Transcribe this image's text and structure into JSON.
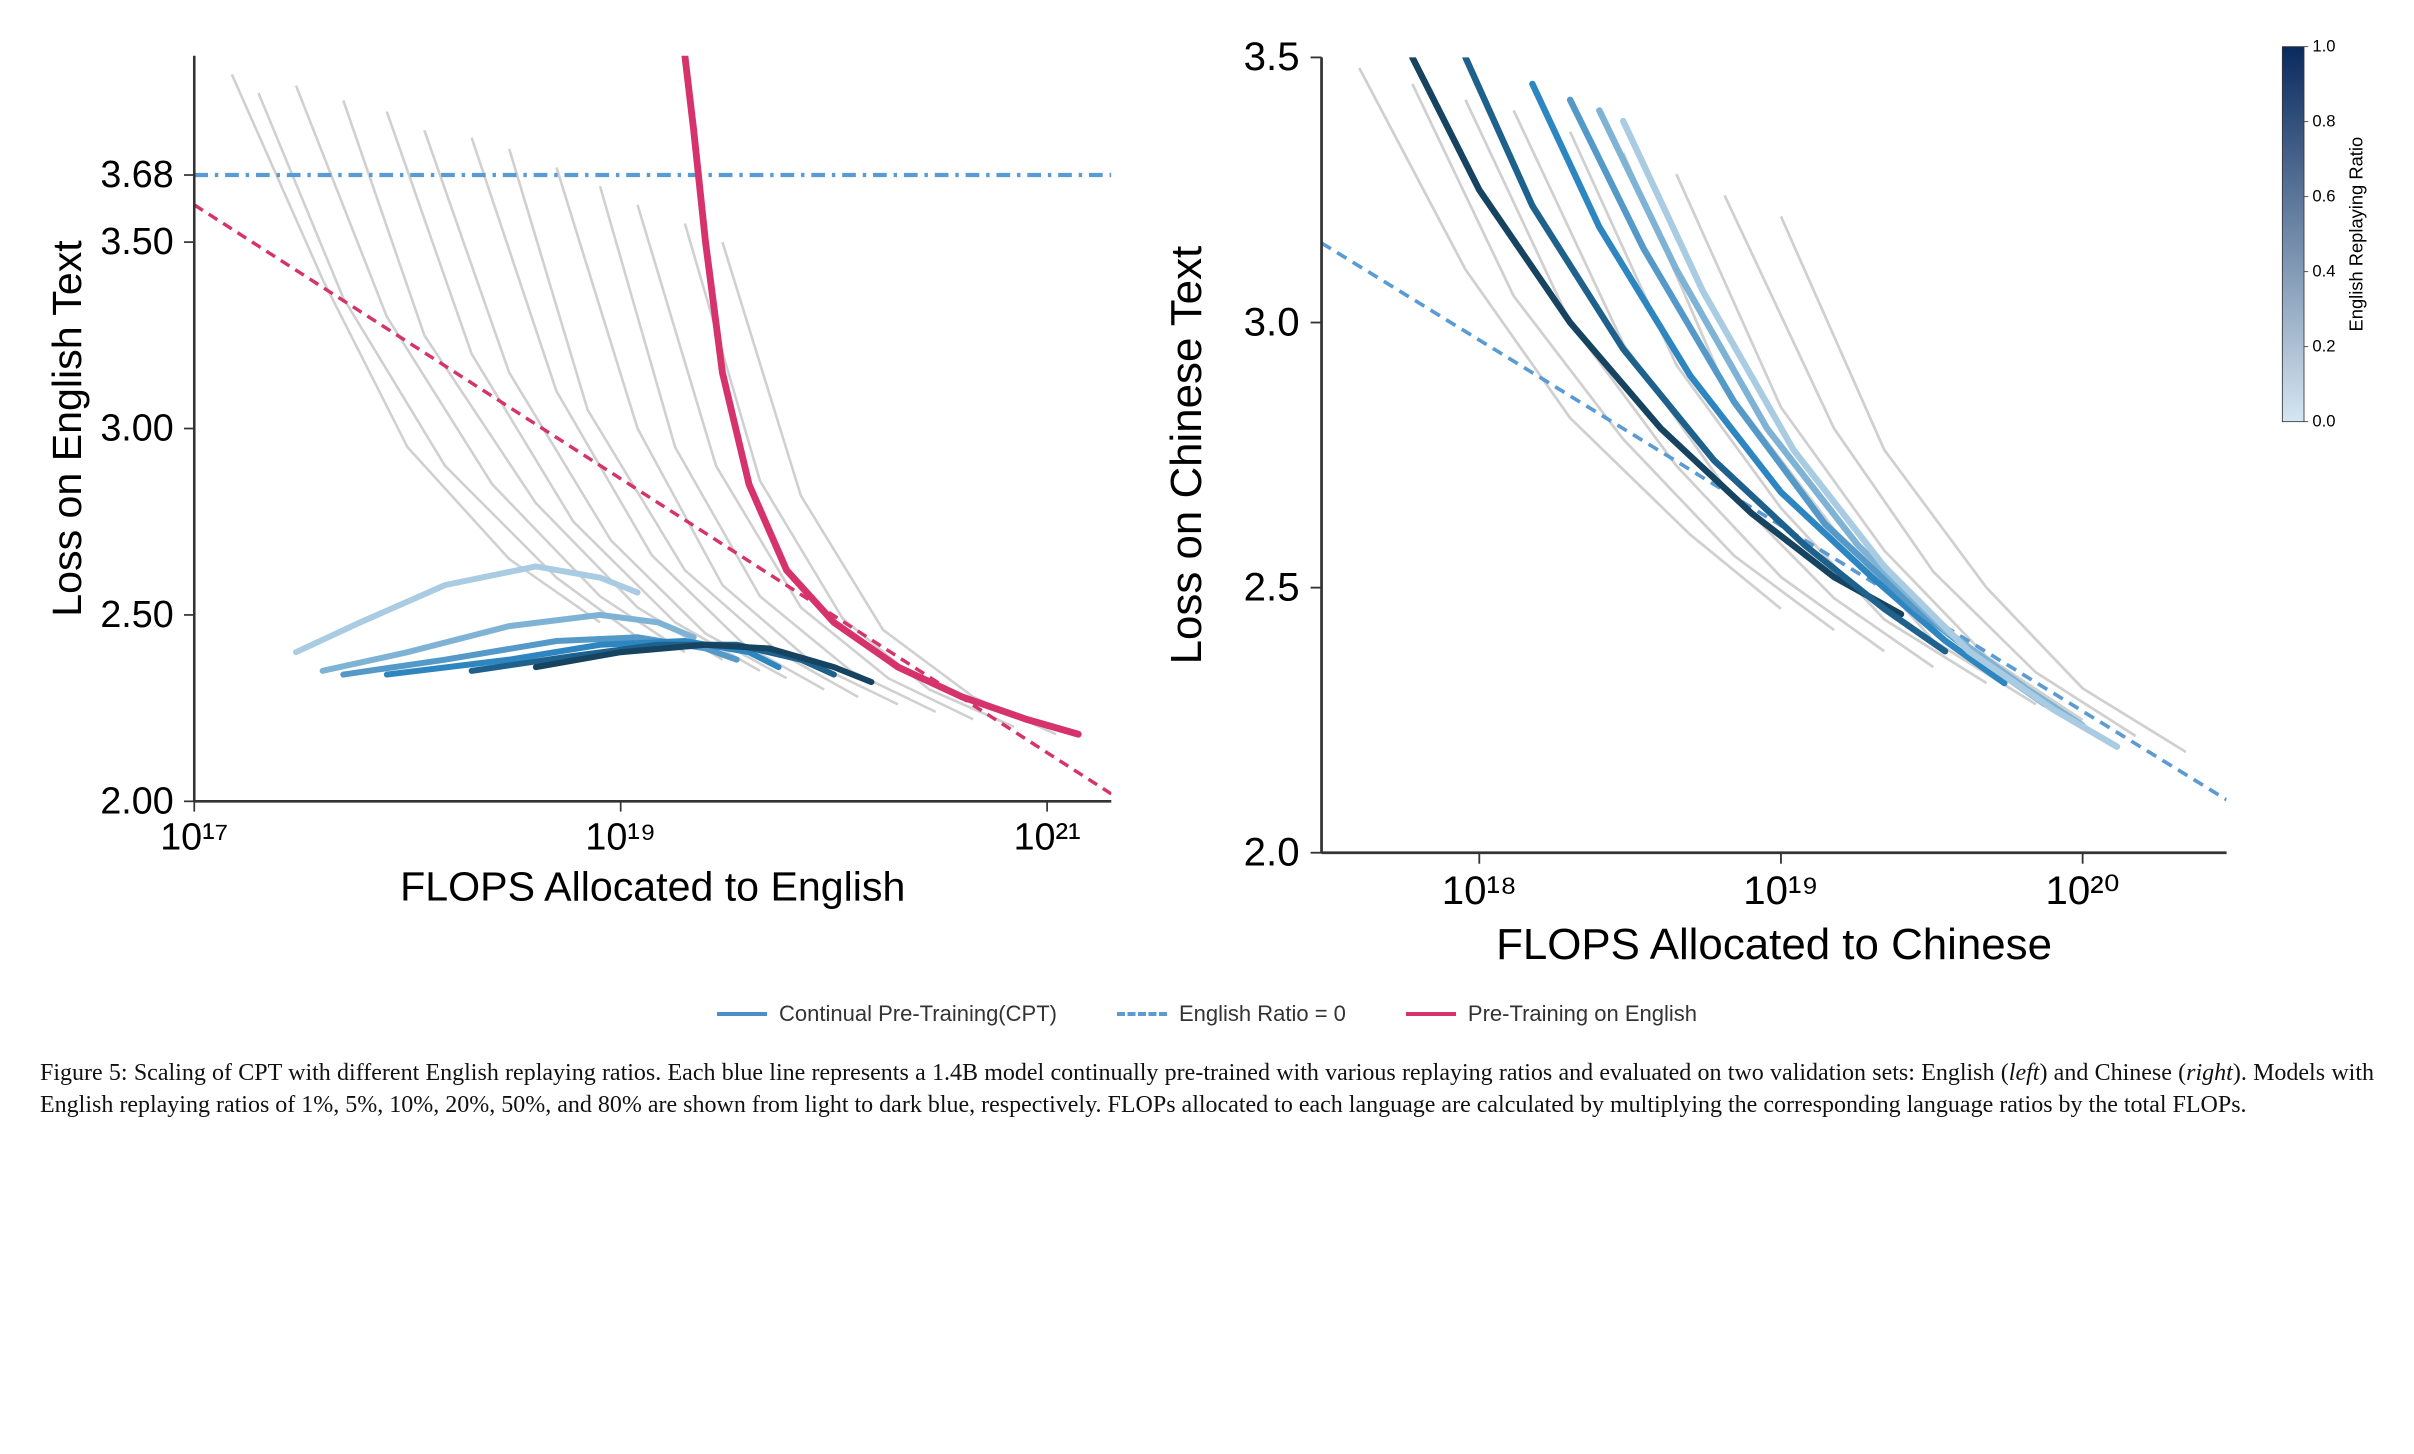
{
  "legend": {
    "cpt": {
      "label": "Continual Pre-Training(CPT)",
      "color": "#4a8fc9",
      "style": "solid"
    },
    "ratio0": {
      "label": "English Ratio = 0",
      "color": "#5a9bd4",
      "style": "dashdot"
    },
    "pretrain": {
      "label": "Pre-Training on English",
      "color": "#d6336c",
      "style": "solid"
    }
  },
  "colorbar": {
    "label": "English Replaying Ratio",
    "min": 0.0,
    "max": 1.0,
    "ticks": [
      0.0,
      0.2,
      0.4,
      0.6,
      0.8,
      1.0
    ],
    "gradient_top": "#0a2a5e",
    "gradient_bottom": "#d4e6f1"
  },
  "ratio_colors": {
    "0.01": "#a9cce3",
    "0.05": "#7fb3d5",
    "0.10": "#5499c7",
    "0.20": "#2e86c1",
    "0.50": "#1f618d",
    "0.80": "#154360"
  },
  "chart_left": {
    "type": "line",
    "xlabel": "FLOPS Allocated to English",
    "ylabel": "Loss on English Text",
    "xscale": "log",
    "xlim": [
      1e+17,
      2e+21
    ],
    "ylim": [
      2.0,
      4.0
    ],
    "xticks": [
      1e+17,
      1e+19,
      1e+21
    ],
    "xtick_labels": [
      "10¹⁷",
      "10¹⁹",
      "10²¹"
    ],
    "yticks": [
      2.0,
      2.5,
      3.0,
      3.5,
      3.68
    ],
    "ytick_labels": [
      "2.00",
      "2.50",
      "3.00",
      "3.50",
      "3.68"
    ],
    "axis_fontsize": 22,
    "label_fontsize": 24,
    "background_color": "#ffffff",
    "horizontal_line": {
      "y": 3.68,
      "color": "#5a9bd4",
      "dash": "8,4,2,4"
    },
    "diag_line": {
      "x1": 1e+17,
      "y1": 3.6,
      "x2": 2e+21,
      "y2": 2.02,
      "color": "#d6336c",
      "dash": "6,4"
    },
    "pink_curve": {
      "color": "#d6336c",
      "width": 4,
      "points": [
        [
          2e+19,
          4.0
        ],
        [
          2.2e+19,
          3.8
        ],
        [
          2.5e+19,
          3.5
        ],
        [
          3e+19,
          3.15
        ],
        [
          4e+19,
          2.85
        ],
        [
          6e+19,
          2.62
        ],
        [
          1e+20,
          2.48
        ],
        [
          2e+20,
          2.36
        ],
        [
          4e+20,
          2.28
        ],
        [
          8e+20,
          2.22
        ],
        [
          1.4e+21,
          2.18
        ]
      ]
    },
    "cpt_curves": [
      {
        "ratio": 0.01,
        "color": "#a9cce3",
        "points": [
          [
            3e+17,
            2.4
          ],
          [
            6e+17,
            2.48
          ],
          [
            1.5e+18,
            2.58
          ],
          [
            4e+18,
            2.63
          ],
          [
            8e+18,
            2.6
          ],
          [
            1.2e+19,
            2.56
          ]
        ]
      },
      {
        "ratio": 0.05,
        "color": "#7fb3d5",
        "points": [
          [
            4e+17,
            2.35
          ],
          [
            1e+18,
            2.4
          ],
          [
            3e+18,
            2.47
          ],
          [
            8e+18,
            2.5
          ],
          [
            1.5e+19,
            2.48
          ],
          [
            2.2e+19,
            2.44
          ]
        ]
      },
      {
        "ratio": 0.1,
        "color": "#5499c7",
        "points": [
          [
            5e+17,
            2.34
          ],
          [
            1.5e+18,
            2.38
          ],
          [
            5e+18,
            2.43
          ],
          [
            1.2e+19,
            2.44
          ],
          [
            2.5e+19,
            2.41
          ],
          [
            3.5e+19,
            2.38
          ]
        ]
      },
      {
        "ratio": 0.2,
        "color": "#2e86c1",
        "points": [
          [
            8e+17,
            2.34
          ],
          [
            3e+18,
            2.38
          ],
          [
            8e+18,
            2.42
          ],
          [
            2e+19,
            2.43
          ],
          [
            4e+19,
            2.4
          ],
          [
            5.5e+19,
            2.36
          ]
        ]
      },
      {
        "ratio": 0.5,
        "color": "#1f618d",
        "points": [
          [
            2e+18,
            2.35
          ],
          [
            6e+18,
            2.39
          ],
          [
            1.5e+19,
            2.42
          ],
          [
            3.5e+19,
            2.42
          ],
          [
            7e+19,
            2.38
          ],
          [
            1e+20,
            2.34
          ]
        ]
      },
      {
        "ratio": 0.8,
        "color": "#154360",
        "points": [
          [
            4e+18,
            2.36
          ],
          [
            1e+19,
            2.4
          ],
          [
            2.5e+19,
            2.42
          ],
          [
            5e+19,
            2.41
          ],
          [
            1e+20,
            2.36
          ],
          [
            1.5e+20,
            2.32
          ]
        ]
      }
    ],
    "grey_bg_curves": [
      [
        [
          1.5e+17,
          3.95
        ],
        [
          4e+17,
          3.4
        ],
        [
          1e+18,
          2.95
        ],
        [
          3e+18,
          2.65
        ],
        [
          8e+18,
          2.48
        ]
      ],
      [
        [
          2e+17,
          3.9
        ],
        [
          5e+17,
          3.35
        ],
        [
          1.5e+18,
          2.9
        ],
        [
          5e+18,
          2.6
        ],
        [
          1.2e+19,
          2.44
        ]
      ],
      [
        [
          3e+17,
          3.92
        ],
        [
          8e+17,
          3.3
        ],
        [
          2.5e+18,
          2.85
        ],
        [
          8e+18,
          2.55
        ],
        [
          2e+19,
          2.4
        ]
      ],
      [
        [
          5e+17,
          3.88
        ],
        [
          1.2e+18,
          3.25
        ],
        [
          4e+18,
          2.8
        ],
        [
          1.2e+19,
          2.52
        ],
        [
          3e+19,
          2.38
        ]
      ],
      [
        [
          8e+17,
          3.85
        ],
        [
          2e+18,
          3.2
        ],
        [
          6e+18,
          2.75
        ],
        [
          1.8e+19,
          2.48
        ],
        [
          4.5e+19,
          2.35
        ]
      ],
      [
        [
          1.2e+18,
          3.8
        ],
        [
          3e+18,
          3.15
        ],
        [
          9e+18,
          2.7
        ],
        [
          2.5e+19,
          2.45
        ],
        [
          6e+19,
          2.33
        ]
      ],
      [
        [
          2e+18,
          3.78
        ],
        [
          5e+18,
          3.1
        ],
        [
          1.4e+19,
          2.66
        ],
        [
          3.8e+19,
          2.42
        ],
        [
          9e+19,
          2.3
        ]
      ],
      [
        [
          3e+18,
          3.75
        ],
        [
          7e+18,
          3.05
        ],
        [
          2e+19,
          2.62
        ],
        [
          5.5e+19,
          2.4
        ],
        [
          1.3e+20,
          2.28
        ]
      ],
      [
        [
          5e+18,
          3.7
        ],
        [
          1.2e+19,
          3.0
        ],
        [
          3e+19,
          2.58
        ],
        [
          8e+19,
          2.37
        ],
        [
          2e+20,
          2.26
        ]
      ],
      [
        [
          8e+18,
          3.65
        ],
        [
          1.8e+19,
          2.95
        ],
        [
          4.5e+19,
          2.55
        ],
        [
          1.2e+20,
          2.35
        ],
        [
          3e+20,
          2.24
        ]
      ],
      [
        [
          1.2e+19,
          3.6
        ],
        [
          2.8e+19,
          2.9
        ],
        [
          7e+19,
          2.52
        ],
        [
          1.8e+20,
          2.33
        ],
        [
          4.5e+20,
          2.22
        ]
      ],
      [
        [
          2e+19,
          3.55
        ],
        [
          4.5e+19,
          2.86
        ],
        [
          1.1e+20,
          2.49
        ],
        [
          2.8e+20,
          2.3
        ],
        [
          7e+20,
          2.2
        ]
      ],
      [
        [
          3e+19,
          3.5
        ],
        [
          7e+19,
          2.82
        ],
        [
          1.7e+20,
          2.46
        ],
        [
          4.5e+20,
          2.28
        ],
        [
          1.1e+21,
          2.18
        ]
      ]
    ]
  },
  "chart_right": {
    "type": "line",
    "xlabel": "FLOPS Allocated to Chinese",
    "ylabel": "Loss on Chinese Text",
    "xscale": "log",
    "xlim": [
      3e+17,
      3e+20
    ],
    "ylim": [
      2.0,
      3.5
    ],
    "xticks": [
      1e+18,
      1e+19,
      1e+20
    ],
    "xtick_labels": [
      "10¹⁸",
      "10¹⁹",
      "10²⁰"
    ],
    "yticks": [
      2.0,
      2.5,
      3.0,
      3.5
    ],
    "ytick_labels": [
      "2.0",
      "2.5",
      "3.0",
      "3.5"
    ],
    "axis_fontsize": 22,
    "label_fontsize": 24,
    "background_color": "#ffffff",
    "diag_line": {
      "x1": 3e+17,
      "y1": 3.15,
      "x2": 3e+20,
      "y2": 2.1,
      "color": "#5a9bd4",
      "dash": "6,4"
    },
    "cpt_curves": [
      {
        "ratio": 0.8,
        "color": "#154360",
        "points": [
          [
            6e+17,
            3.5
          ],
          [
            1e+18,
            3.25
          ],
          [
            2e+18,
            3.0
          ],
          [
            4e+18,
            2.8
          ],
          [
            8e+18,
            2.64
          ],
          [
            1.5e+19,
            2.52
          ],
          [
            2.5e+19,
            2.45
          ]
        ]
      },
      {
        "ratio": 0.5,
        "color": "#1f618d",
        "points": [
          [
            9e+17,
            3.5
          ],
          [
            1.5e+18,
            3.22
          ],
          [
            3e+18,
            2.95
          ],
          [
            6e+18,
            2.74
          ],
          [
            1.2e+19,
            2.58
          ],
          [
            2.2e+19,
            2.46
          ],
          [
            3.5e+19,
            2.38
          ]
        ]
      },
      {
        "ratio": 0.2,
        "color": "#2e86c1",
        "points": [
          [
            1.5e+18,
            3.45
          ],
          [
            2.5e+18,
            3.18
          ],
          [
            5e+18,
            2.9
          ],
          [
            1e+19,
            2.68
          ],
          [
            2e+19,
            2.52
          ],
          [
            3.5e+19,
            2.4
          ],
          [
            5.5e+19,
            2.32
          ]
        ]
      },
      {
        "ratio": 0.1,
        "color": "#5499c7",
        "points": [
          [
            2e+18,
            3.42
          ],
          [
            3.5e+18,
            3.14
          ],
          [
            7e+18,
            2.85
          ],
          [
            1.4e+19,
            2.62
          ],
          [
            2.8e+19,
            2.46
          ],
          [
            5e+19,
            2.35
          ],
          [
            7.5e+19,
            2.28
          ]
        ]
      },
      {
        "ratio": 0.05,
        "color": "#7fb3d5",
        "points": [
          [
            2.5e+18,
            3.4
          ],
          [
            4.5e+18,
            3.1
          ],
          [
            9e+18,
            2.8
          ],
          [
            1.8e+19,
            2.58
          ],
          [
            3.5e+19,
            2.42
          ],
          [
            6.5e+19,
            2.31
          ],
          [
            1e+20,
            2.24
          ]
        ]
      },
      {
        "ratio": 0.01,
        "color": "#a9cce3",
        "points": [
          [
            3e+18,
            3.38
          ],
          [
            5.5e+18,
            3.06
          ],
          [
            1.1e+19,
            2.76
          ],
          [
            2.2e+19,
            2.54
          ],
          [
            4.2e+19,
            2.38
          ],
          [
            8e+19,
            2.27
          ],
          [
            1.3e+20,
            2.2
          ]
        ]
      }
    ],
    "grey_bg_curves": [
      [
        [
          4e+17,
          3.48
        ],
        [
          9e+17,
          3.1
        ],
        [
          2e+18,
          2.82
        ],
        [
          5e+18,
          2.6
        ],
        [
          1e+19,
          2.46
        ]
      ],
      [
        [
          6e+17,
          3.45
        ],
        [
          1.3e+18,
          3.05
        ],
        [
          3e+18,
          2.78
        ],
        [
          7e+18,
          2.56
        ],
        [
          1.5e+19,
          2.42
        ]
      ],
      [
        [
          9e+17,
          3.42
        ],
        [
          2e+18,
          3.0
        ],
        [
          4.5e+18,
          2.73
        ],
        [
          1e+19,
          2.52
        ],
        [
          2.2e+19,
          2.38
        ]
      ],
      [
        [
          1.3e+18,
          3.4
        ],
        [
          3e+18,
          2.96
        ],
        [
          6.5e+18,
          2.69
        ],
        [
          1.5e+19,
          2.48
        ],
        [
          3.2e+19,
          2.35
        ]
      ],
      [
        [
          2e+18,
          3.36
        ],
        [
          4.5e+18,
          2.92
        ],
        [
          1e+19,
          2.65
        ],
        [
          2.2e+19,
          2.44
        ],
        [
          4.8e+19,
          2.32
        ]
      ],
      [
        [
          3e+18,
          3.32
        ],
        [
          6.5e+18,
          2.88
        ],
        [
          1.5e+19,
          2.61
        ],
        [
          3.2e+19,
          2.4
        ],
        [
          7e+19,
          2.28
        ]
      ],
      [
        [
          4.5e+18,
          3.28
        ],
        [
          1e+19,
          2.84
        ],
        [
          2.2e+19,
          2.57
        ],
        [
          4.8e+19,
          2.37
        ],
        [
          1e+20,
          2.25
        ]
      ],
      [
        [
          6.5e+18,
          3.24
        ],
        [
          1.5e+19,
          2.8
        ],
        [
          3.2e+19,
          2.53
        ],
        [
          7e+19,
          2.34
        ],
        [
          1.5e+20,
          2.22
        ]
      ],
      [
        [
          1e+19,
          3.2
        ],
        [
          2.2e+19,
          2.76
        ],
        [
          4.8e+19,
          2.5
        ],
        [
          1e+20,
          2.31
        ],
        [
          2.2e+20,
          2.19
        ]
      ]
    ]
  },
  "caption": {
    "label": "Figure 5:",
    "text1": " Scaling of CPT with different English replaying ratios. Each blue line represents a 1.4B model continually pre-trained with various replaying ratios and evaluated on two validation sets: English (",
    "left_em": "left",
    "text2": ") and Chinese (",
    "right_em": "right",
    "text3": "). Models with English replaying ratios of 1%, 5%, 10%, 20%, 50%, and 80% are shown from light to dark blue, respectively. FLOPs allocated to each language are calculated by multiplying the corresponding language ratios by the total FLOPs."
  }
}
